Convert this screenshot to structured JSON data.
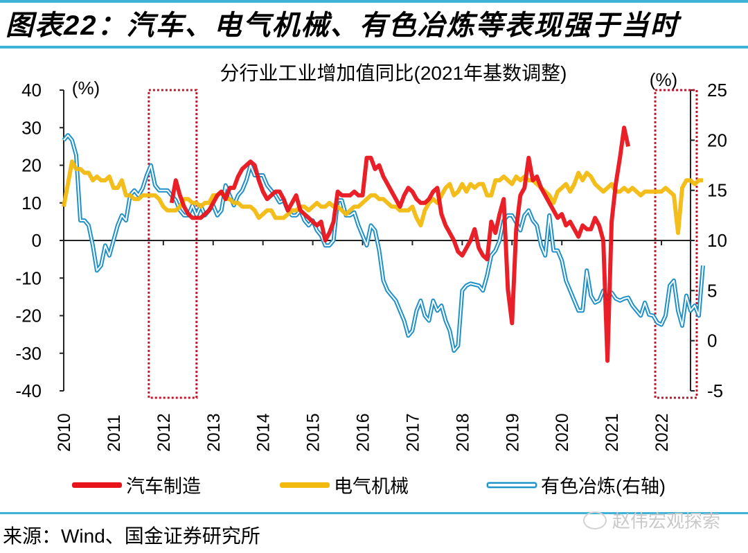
{
  "figure": {
    "title": "图表22：汽车、电气机械、有色冶炼等表现强于当时",
    "source": "来源：Wind、国金证券研究所",
    "watermark": "赵伟宏观探索",
    "watermark_icon": "wechat-icon",
    "accent_color": "#3fb3d6"
  },
  "chart_data": {
    "type": "line",
    "title": "分行业工业增加值同比(2021年基数调整)",
    "left_axis": {
      "label": "(%)",
      "ylim": [
        -40,
        40
      ],
      "ticks": [
        40,
        30,
        20,
        10,
        0,
        -10,
        -20,
        -30,
        -40
      ]
    },
    "right_axis": {
      "label": "(%)",
      "ylim": [
        -5,
        25
      ],
      "ticks": [
        25,
        20,
        15,
        10,
        5,
        0,
        -5
      ]
    },
    "x_tick_labels": [
      "2010",
      "2011",
      "2012",
      "2013",
      "2014",
      "2015",
      "2016",
      "2017",
      "2018",
      "2019",
      "2020",
      "2021",
      "2022"
    ],
    "x_range": [
      "2010-01",
      "2022-08"
    ],
    "legend_position": "bottom",
    "grid": false,
    "highlight_boxes": [
      {
        "from": "2011-10",
        "to": "2012-08",
        "color": "#c0142b",
        "style": "dotted"
      },
      {
        "from": "2021-12",
        "to": "2022-08",
        "color": "#c0142b",
        "style": "dotted"
      }
    ],
    "series": [
      {
        "name": "汽车制造",
        "axis": "left",
        "color": "#e8141b",
        "start": "2012-03",
        "values": [
          10,
          16,
          12,
          9,
          7,
          6,
          6,
          6,
          7,
          8,
          10,
          12,
          13,
          11,
          14,
          14,
          17,
          19,
          20,
          21,
          20,
          16,
          13,
          11,
          12,
          13,
          13,
          11,
          8,
          10,
          12,
          8,
          7,
          6,
          5,
          4,
          5,
          0,
          2,
          5,
          13,
          12,
          12,
          12,
          13,
          12,
          12,
          22,
          22,
          19,
          20,
          17,
          15,
          13,
          11,
          9,
          12,
          14,
          13,
          11,
          10,
          10,
          11,
          13,
          14,
          7,
          4,
          2,
          0,
          -3,
          -4,
          -2,
          0,
          3,
          -2,
          -4,
          -5,
          5,
          2,
          7,
          11,
          -13,
          -22,
          3,
          12,
          14,
          22,
          16,
          17,
          14,
          12,
          10,
          8,
          6,
          7,
          4,
          5,
          3,
          1,
          4,
          3,
          3,
          6,
          4,
          0,
          -32,
          5,
          15,
          22,
          30,
          25
        ]
      },
      {
        "name": "电气机械",
        "axis": "left",
        "color": "#f2b90f",
        "start": "2010-01",
        "values": [
          9,
          15,
          21,
          19,
          19,
          18,
          18,
          16,
          17,
          16,
          16,
          17,
          14,
          14,
          16,
          12,
          12,
          11,
          11,
          12,
          12,
          12,
          12,
          11,
          9,
          8,
          8,
          8,
          9,
          11,
          11,
          10,
          10,
          9,
          10,
          10,
          12,
          12,
          13,
          11,
          11,
          10,
          10,
          9,
          9,
          9,
          8,
          6,
          7,
          8,
          8,
          6,
          6,
          6,
          7,
          8,
          8,
          9,
          9,
          8,
          9,
          10,
          9,
          9,
          10,
          9,
          9,
          8,
          7,
          8,
          9,
          9,
          10,
          11,
          12,
          12,
          11,
          11,
          10,
          9,
          9,
          8,
          8,
          8,
          9,
          6,
          4,
          8,
          10,
          11,
          10,
          12,
          14,
          15,
          12,
          13,
          15,
          13,
          15,
          14,
          15,
          15,
          12,
          12,
          16,
          16,
          17,
          16,
          15,
          17,
          16,
          17,
          16,
          16,
          15,
          14,
          13,
          12,
          10,
          13,
          14,
          15,
          13,
          15,
          18,
          16,
          18,
          17,
          15,
          14,
          13,
          14,
          15,
          13,
          13,
          14,
          13,
          14,
          13,
          12,
          13,
          13,
          13,
          13,
          13,
          14,
          13,
          12,
          2,
          14,
          16,
          16,
          15,
          16,
          16
        ]
      },
      {
        "name": "有色冶炼(右轴)",
        "axis": "right",
        "color": "#1e90c8",
        "start": "2010-01",
        "values": [
          20,
          20.5,
          20,
          18.5,
          12,
          12,
          11.5,
          9.5,
          7,
          7.5,
          9.5,
          8.5,
          10,
          11.5,
          12.5,
          12,
          14.5,
          15,
          14.5,
          15.2,
          16.5,
          17.5,
          15.5,
          15,
          15,
          15,
          14.5,
          14,
          13,
          12.5,
          12.5,
          13.5,
          12.5,
          13.5,
          12.5,
          13,
          13.5,
          12.5,
          13,
          15.5,
          14.5,
          13.5,
          14.5,
          15,
          16,
          17.5,
          16.5,
          16.5,
          16.5,
          15.5,
          15,
          14.5,
          13.8,
          14,
          13,
          12.5,
          12.5,
          13,
          12,
          11.5,
          12,
          11,
          10.5,
          9.5,
          9.5,
          10,
          14,
          14,
          12.5,
          12.5,
          12.8,
          11.5,
          10.5,
          9.5,
          11.5,
          11,
          9,
          6,
          5,
          4.5,
          4,
          3,
          2,
          0.5,
          1,
          3,
          4,
          2.5,
          2,
          4,
          3,
          3.5,
          2,
          1,
          -1,
          -0.5,
          5,
          5.5,
          5.7,
          5.6,
          5.5,
          5,
          6.5,
          8.5,
          9,
          10,
          12,
          12.5,
          12.5,
          11.8,
          11,
          12.5,
          13,
          12,
          11.5,
          9.5,
          8.5,
          12.5,
          9,
          9,
          8,
          6,
          5,
          4,
          3,
          3,
          7,
          4.5,
          3.8,
          4,
          5,
          4.2,
          4.8,
          4.2,
          4,
          4.2,
          4.3,
          3.5,
          3,
          2.5,
          3.8,
          2.6,
          2.5,
          1.8,
          1.6,
          2.5,
          5.5,
          6,
          3,
          1.5,
          4.5,
          3,
          3.5,
          2.5,
          7.5
        ]
      }
    ]
  }
}
